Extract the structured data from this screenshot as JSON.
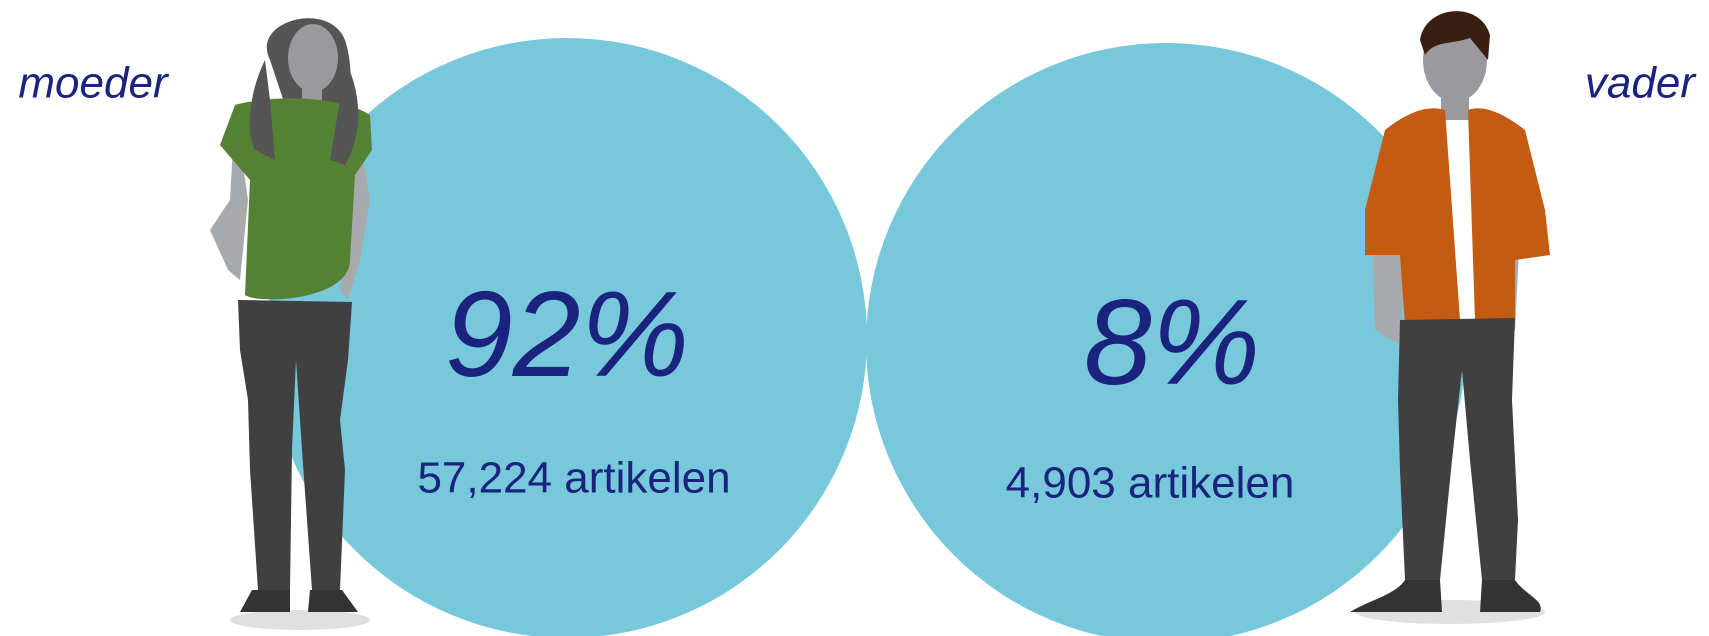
{
  "left": {
    "label": "moeder",
    "percent": "92%",
    "count": "57,224 artikelen"
  },
  "right": {
    "label": "vader",
    "percent": "8%",
    "count": "4,903 artikelen"
  }
}
